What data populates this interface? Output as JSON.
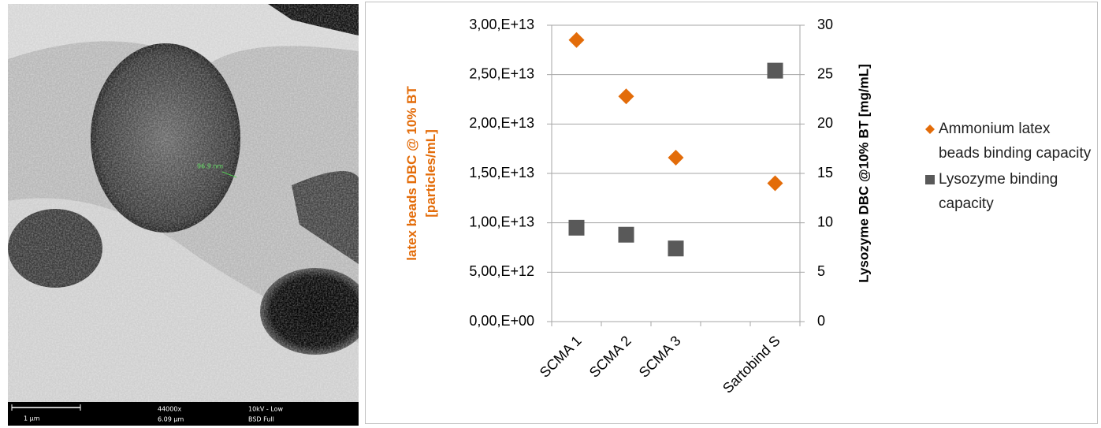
{
  "micrograph": {
    "measurement": "96.9 nm",
    "scale_bar": "1 µm",
    "magnification": "44000x",
    "field_width": "6.09 µm",
    "voltage": "10kV - Low",
    "detector": "BSD Full"
  },
  "chart_data": {
    "type": "scatter",
    "categories": [
      "SCMA 1",
      "SCMA 2",
      "SCMA 3",
      null,
      "Sartobind S"
    ],
    "ylabel": [
      "latex beads DBC @ 10% BT",
      "[particles/mL]"
    ],
    "y2label": "Lysozyme DBC @10% BT [mg/mL]",
    "ylabel_color": "#e36c09",
    "series": [
      {
        "name": "Ammonium latex beads binding capacity",
        "color": "#e36c09",
        "marker": "diamond",
        "values": [
          28500000000000.0,
          22800000000000.0,
          16600000000000.0,
          null,
          14000000000000.0
        ]
      },
      {
        "name": "Lysozyme binding capacity",
        "color": "#595959",
        "marker": "square",
        "axis": "y2",
        "values": [
          9.5,
          8.8,
          7.4,
          null,
          25.4
        ]
      }
    ],
    "ylim": [
      0,
      30000000000000.0
    ],
    "yticks": [
      {
        "value": 0,
        "label": "0,00,E+00"
      },
      {
        "value": 5000000000000.0,
        "label": "5,00,E+12"
      },
      {
        "value": 10000000000000.0,
        "label": "1,00,E+13"
      },
      {
        "value": 15000000000000.0,
        "label": "1,50,E+13"
      },
      {
        "value": 20000000000000.0,
        "label": "2,00,E+13"
      },
      {
        "value": 25000000000000.0,
        "label": "2,50,E+13"
      },
      {
        "value": 30000000000000.0,
        "label": "3,00,E+13"
      }
    ],
    "y2lim": [
      0,
      30
    ],
    "y2ticks": [
      0,
      5,
      10,
      15,
      20,
      25,
      30
    ],
    "grid": true,
    "legend": "right"
  }
}
